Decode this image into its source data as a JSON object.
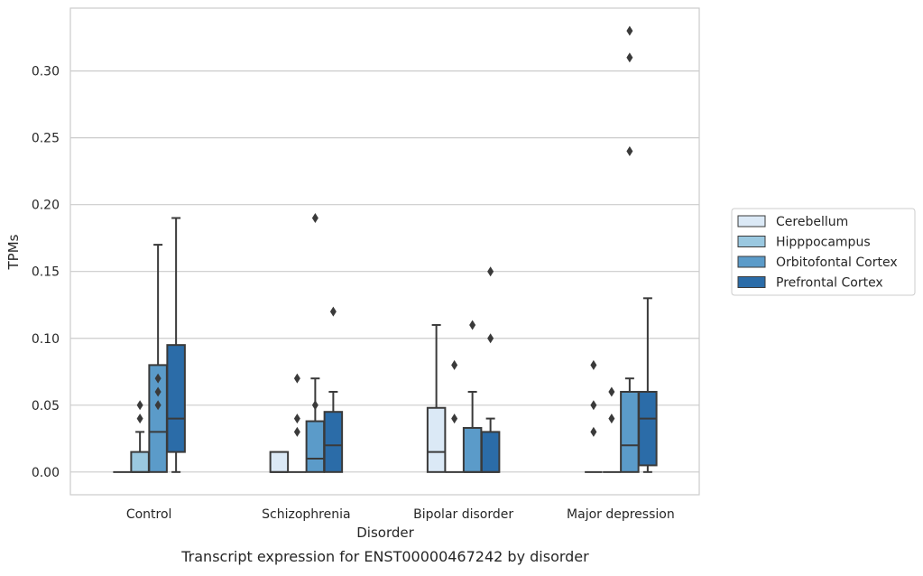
{
  "chart_data": {
    "type": "boxplot",
    "caption": "Transcript expression for ENST00000467242 by disorder",
    "xlabel": "Disorder",
    "ylabel": "TPMs",
    "ylim": [
      -0.017,
      0.347
    ],
    "yticks": [
      "0.00",
      "0.05",
      "0.10",
      "0.15",
      "0.20",
      "0.25",
      "0.30"
    ],
    "grid": "horizontal",
    "legend_position": "right",
    "categories": [
      "Control",
      "Schizophrenia",
      "Bipolar disorder",
      "Major depression"
    ],
    "series": [
      {
        "name": "Cerebellum",
        "color": "#dbe9f6",
        "boxes": [
          {
            "whislo": 0,
            "q1": 0,
            "med": 0,
            "q3": 0,
            "whishi": 0,
            "fliers": []
          },
          {
            "whislo": 0,
            "q1": 0,
            "med": 0,
            "q3": 0.015,
            "whishi": 0.015,
            "fliers": []
          },
          {
            "whislo": 0,
            "q1": 0,
            "med": 0.015,
            "q3": 0.048,
            "whishi": 0.11,
            "fliers": []
          },
          {
            "whislo": 0,
            "q1": 0,
            "med": 0,
            "q3": 0,
            "whishi": 0,
            "fliers": [
              0.03,
              0.05,
              0.08
            ]
          }
        ]
      },
      {
        "name": "Hipppocampus",
        "color": "#9ac8e0",
        "boxes": [
          {
            "whislo": 0,
            "q1": 0,
            "med": 0,
            "q3": 0.015,
            "whishi": 0.03,
            "fliers": [
              0.04,
              0.05
            ]
          },
          {
            "whislo": 0,
            "q1": 0,
            "med": 0,
            "q3": 0,
            "whishi": 0,
            "fliers": [
              0.03,
              0.04,
              0.07
            ]
          },
          {
            "whislo": 0,
            "q1": 0,
            "med": 0,
            "q3": 0,
            "whishi": 0,
            "fliers": [
              0.04,
              0.08
            ]
          },
          {
            "whislo": 0,
            "q1": 0,
            "med": 0,
            "q3": 0,
            "whishi": 0,
            "fliers": [
              0.04,
              0.06
            ]
          }
        ]
      },
      {
        "name": "Orbitofontal Cortex",
        "color": "#5b9bc9",
        "boxes": [
          {
            "whislo": 0,
            "q1": 0,
            "med": 0.03,
            "q3": 0.08,
            "whishi": 0.17,
            "fliers": [
              0.05,
              0.06,
              0.07
            ]
          },
          {
            "whislo": 0,
            "q1": 0,
            "med": 0.01,
            "q3": 0.038,
            "whishi": 0.07,
            "fliers": [
              0.05,
              0.19
            ]
          },
          {
            "whislo": 0,
            "q1": 0,
            "med": 0,
            "q3": 0.033,
            "whishi": 0.06,
            "fliers": [
              0.11
            ]
          },
          {
            "whislo": 0,
            "q1": 0,
            "med": 0.02,
            "q3": 0.06,
            "whishi": 0.07,
            "fliers": [
              0.24,
              0.31,
              0.33
            ]
          }
        ]
      },
      {
        "name": "Prefrontal Cortex",
        "color": "#2b6ca8",
        "boxes": [
          {
            "whislo": 0,
            "q1": 0.015,
            "med": 0.04,
            "q3": 0.095,
            "whishi": 0.19,
            "fliers": []
          },
          {
            "whislo": 0,
            "q1": 0,
            "med": 0.02,
            "q3": 0.045,
            "whishi": 0.06,
            "fliers": [
              0.12
            ]
          },
          {
            "whislo": 0,
            "q1": 0,
            "med": 0,
            "q3": 0.03,
            "whishi": 0.04,
            "fliers": [
              0.1,
              0.15
            ]
          },
          {
            "whislo": 0,
            "q1": 0.005,
            "med": 0.04,
            "q3": 0.06,
            "whishi": 0.13,
            "fliers": []
          }
        ]
      }
    ]
  }
}
